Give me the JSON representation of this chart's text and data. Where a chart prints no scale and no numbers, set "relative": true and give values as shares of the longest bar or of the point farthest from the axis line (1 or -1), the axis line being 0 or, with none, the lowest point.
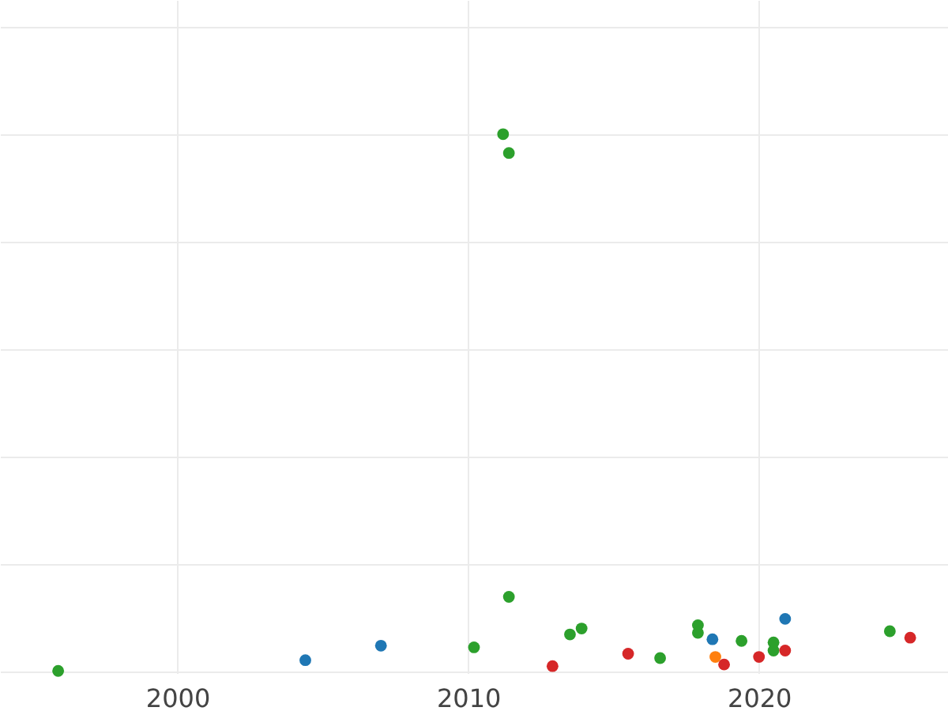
{
  "chart_data": {
    "type": "scatter",
    "relative": true,
    "xlim": [
      1993.9,
      2026.5
    ],
    "xticks": [
      2000,
      2010,
      2020
    ],
    "tick_labels": "x",
    "grid": true,
    "marker": "circle",
    "series": [
      {
        "color": "#2ca02c",
        "x": [
          1995.9,
          2010.2,
          2011.4,
          2011.2,
          2011.4,
          2013.5,
          2013.9,
          2016.6,
          2017.9,
          2017.9,
          2019.4,
          2020.5,
          2020.5,
          2024.5
        ],
        "values": [
          0,
          0.044,
          0.138,
          1.0,
          0.965,
          0.068,
          0.079,
          0.024,
          0.085,
          0.071,
          0.056,
          0.053,
          0.038,
          0.074
        ]
      },
      {
        "color": "#1f77b4",
        "x": [
          2004.4,
          2007.0,
          2018.4,
          2020.9
        ],
        "values": [
          0.02,
          0.047,
          0.059,
          0.097
        ]
      },
      {
        "color": "#d62728",
        "x": [
          2012.9,
          2015.5,
          2018.8,
          2020.0,
          2020.9,
          2025.2
        ],
        "values": [
          0.009,
          0.032,
          0.012,
          0.026,
          0.038,
          0.062
        ]
      },
      {
        "color": "#ff7f0e",
        "x": [
          2018.5
        ],
        "values": [
          0.026
        ]
      }
    ]
  }
}
